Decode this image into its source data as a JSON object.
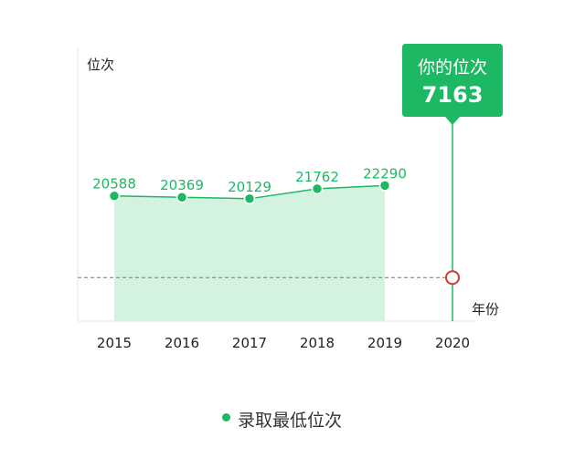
{
  "chart_data": {
    "type": "line",
    "x_axis_title": "年份",
    "y_axis_title": "位次",
    "categories": [
      "2015",
      "2016",
      "2017",
      "2018",
      "2019",
      "2020"
    ],
    "series": [
      {
        "name": "录取最低位次",
        "values": [
          20588,
          20369,
          20129,
          21762,
          22290,
          null
        ],
        "color": "#1db864",
        "fill": "#d3f2e0",
        "area": true
      }
    ],
    "your_rank": {
      "label": "你的位次",
      "value": 7163,
      "category": "2020",
      "marker_color": "#d03a2f",
      "callout_color": "#1db864"
    },
    "y_visual_range": [
      0,
      45000
    ],
    "grid": false,
    "legend_position": "bottom-center"
  }
}
